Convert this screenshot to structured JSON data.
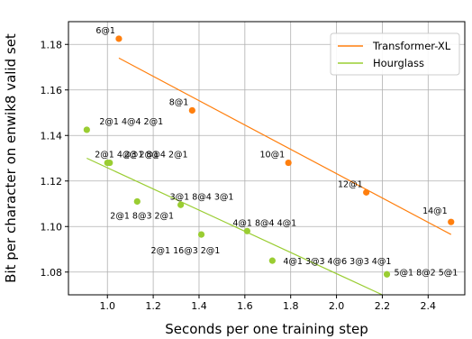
{
  "chart_data": {
    "type": "scatter",
    "xlabel": "Seconds per one training step",
    "ylabel": "Bit per character on enwik8 valid set",
    "xlim": [
      0.83,
      2.56
    ],
    "ylim": [
      1.07,
      1.19
    ],
    "xticks": [
      1.0,
      1.2,
      1.4,
      1.6,
      1.8,
      2.0,
      2.2,
      2.4
    ],
    "yticks": [
      1.08,
      1.1,
      1.12,
      1.14,
      1.16,
      1.18
    ],
    "xtick_labels": [
      "1.0",
      "1.2",
      "1.4",
      "1.6",
      "1.8",
      "2.0",
      "2.2",
      "2.4"
    ],
    "ytick_labels": [
      "1.08",
      "1.10",
      "1.12",
      "1.14",
      "1.16",
      "1.18"
    ],
    "grid": true,
    "legend_position": "top-right",
    "series": [
      {
        "name": "Transformer-XL",
        "color": "#ff7f0e",
        "points": [
          {
            "x": 1.05,
            "y": 1.1825,
            "label": "6@1"
          },
          {
            "x": 1.37,
            "y": 1.151,
            "label": "8@1"
          },
          {
            "x": 1.79,
            "y": 1.128,
            "label": "10@1"
          },
          {
            "x": 2.13,
            "y": 1.115,
            "label": "12@1"
          },
          {
            "x": 2.5,
            "y": 1.102,
            "label": "14@1"
          }
        ],
        "fit_line": [
          [
            1.05,
            1.174
          ],
          [
            2.5,
            1.0965
          ]
        ]
      },
      {
        "name": "Hourglass",
        "color": "#9acd32",
        "points": [
          {
            "x": 0.91,
            "y": 1.1425,
            "label": "2@1 4@4 2@1"
          },
          {
            "x": 1.01,
            "y": 1.128,
            "label": "2@1 8@4 2@1"
          },
          {
            "x": 1.0,
            "y": 1.128,
            "label": "2@1 4@3 2@1"
          },
          {
            "x": 1.13,
            "y": 1.111,
            "label": "2@1 8@3 2@1"
          },
          {
            "x": 1.32,
            "y": 1.1095,
            "label": "3@1 8@4 3@1"
          },
          {
            "x": 1.41,
            "y": 1.0965,
            "label": "2@1 16@3 2@1"
          },
          {
            "x": 1.61,
            "y": 1.098,
            "label": "4@1 8@4 4@1"
          },
          {
            "x": 1.72,
            "y": 1.085,
            "label": "4@1 3@3 4@6 3@3 4@1"
          },
          {
            "x": 2.22,
            "y": 1.079,
            "label": "5@1 8@2 5@1"
          }
        ],
        "fit_line": [
          [
            0.91,
            1.13
          ],
          [
            2.2,
            1.07
          ]
        ]
      }
    ]
  }
}
